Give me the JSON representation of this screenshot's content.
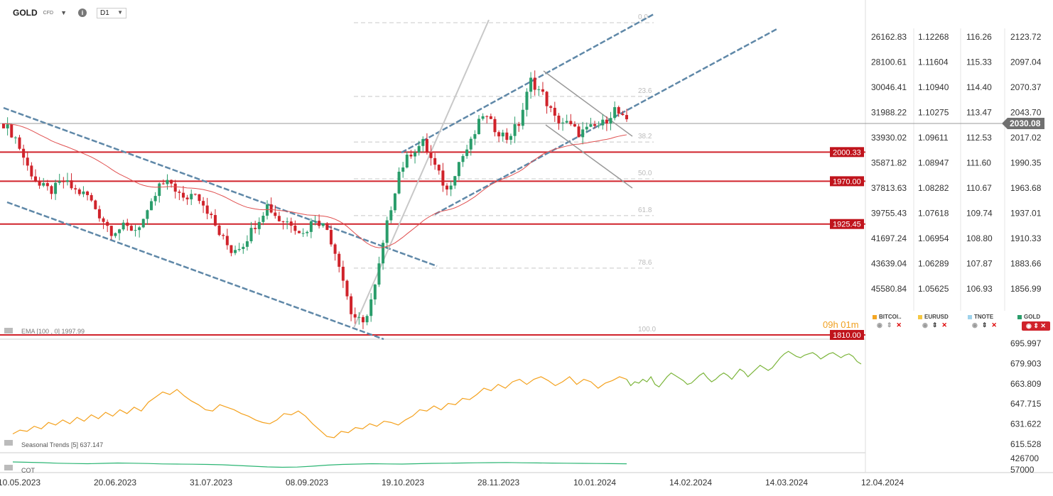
{
  "header": {
    "symbol": "GOLD",
    "instrument_type": "CFD",
    "timeframe": "D1",
    "info_icon": "info-icon"
  },
  "chart_data": [
    {
      "type": "candlestick",
      "title": "",
      "x_tick_labels": [
        "10.05.2023",
        "20.06.2023",
        "31.07.2023",
        "08.09.2023",
        "19.10.2023",
        "28.11.2023",
        "10.01.2024",
        "14.02.2024",
        "14.03.2024",
        "12.04.2024"
      ],
      "y_axis_gold": [
        "2123.72",
        "2097.04",
        "2070.37",
        "2043.70",
        "2017.02",
        "1990.35",
        "1963.68",
        "1937.01",
        "1910.33",
        "1883.66",
        "1856.99"
      ],
      "y_axis_bitcoin": [
        "26162.83",
        "28100.61",
        "30046.41",
        "31988.22",
        "33930.02",
        "35871.82",
        "37813.63",
        "39755.43",
        "41697.24",
        "43639.04",
        "45580.84"
      ],
      "y_axis_eurusd": [
        "1.12268",
        "1.11604",
        "1.10940",
        "1.10275",
        "1.09611",
        "1.08947",
        "1.08282",
        "1.07618",
        "1.06954",
        "1.06289",
        "1.05625"
      ],
      "y_axis_tnote": [
        "116.26",
        "115.33",
        "114.40",
        "113.47",
        "112.53",
        "111.60",
        "110.67",
        "109.74",
        "108.80",
        "107.87",
        "106.93"
      ],
      "last_price": "2030.08",
      "ylim": [
        1810,
        2135
      ],
      "horizontal_levels": [
        {
          "label": "2000.33",
          "value": 2000.33
        },
        {
          "label": "1970.00",
          "value": 1970.0
        },
        {
          "label": "1925.45",
          "value": 1925.45
        },
        {
          "label": "1810.00",
          "value": 1810.0
        }
      ],
      "fibonacci_levels": [
        "0.0",
        "23.6",
        "38.2",
        "50.0",
        "61.8",
        "78.6",
        "100.0"
      ],
      "ema_label": "EMA [100 , 0]  1997.99",
      "countdown": "09h 01m",
      "legend": [
        {
          "name": "BITCOI..",
          "color": "#f4a623"
        },
        {
          "name": "EURUSD",
          "color": "#f5c842"
        },
        {
          "name": "TNOTE",
          "color": "#9fd3ec"
        },
        {
          "name": "GOLD",
          "color": "#2a9d6b"
        }
      ],
      "gold_series": [
        {
          "d": "10.05.2023",
          "c": 2030
        },
        {
          "d": "15.05.2023",
          "c": 2015
        },
        {
          "d": "19.05.2023",
          "c": 1985
        },
        {
          "d": "24.05.2023",
          "c": 1965
        },
        {
          "d": "30.05.2023",
          "c": 1960
        },
        {
          "d": "05.06.2023",
          "c": 1970
        },
        {
          "d": "09.06.2023",
          "c": 1960
        },
        {
          "d": "15.06.2023",
          "c": 1955
        },
        {
          "d": "20.06.2023",
          "c": 1935
        },
        {
          "d": "26.06.2023",
          "c": 1918
        },
        {
          "d": "30.06.2023",
          "c": 1922
        },
        {
          "d": "06.07.2023",
          "c": 1920
        },
        {
          "d": "11.07.2023",
          "c": 1935
        },
        {
          "d": "17.07.2023",
          "c": 1965
        },
        {
          "d": "21.07.2023",
          "c": 1968
        },
        {
          "d": "27.07.2023",
          "c": 1950
        },
        {
          "d": "31.07.2023",
          "c": 1960
        },
        {
          "d": "04.08.2023",
          "c": 1940
        },
        {
          "d": "10.08.2023",
          "c": 1915
        },
        {
          "d": "16.08.2023",
          "c": 1898
        },
        {
          "d": "22.08.2023",
          "c": 1905
        },
        {
          "d": "28.08.2023",
          "c": 1925
        },
        {
          "d": "01.09.2023",
          "c": 1945
        },
        {
          "d": "07.09.2023",
          "c": 1930
        },
        {
          "d": "08.09.2023",
          "c": 1927
        },
        {
          "d": "14.09.2023",
          "c": 1915
        },
        {
          "d": "20.09.2023",
          "c": 1932
        },
        {
          "d": "26.09.2023",
          "c": 1920
        },
        {
          "d": "02.10.2023",
          "c": 1885
        },
        {
          "d": "06.10.2023",
          "c": 1833
        },
        {
          "d": "10.10.2023",
          "c": 1820
        },
        {
          "d": "13.10.2023",
          "c": 1860
        },
        {
          "d": "19.10.2023",
          "c": 1925
        },
        {
          "d": "25.10.2023",
          "c": 1980
        },
        {
          "d": "30.10.2023",
          "c": 2000
        },
        {
          "d": "03.11.2023",
          "c": 2010
        },
        {
          "d": "09.11.2023",
          "c": 1985
        },
        {
          "d": "15.11.2023",
          "c": 1960
        },
        {
          "d": "21.11.2023",
          "c": 1990
        },
        {
          "d": "28.11.2023",
          "c": 2010
        },
        {
          "d": "04.12.2023",
          "c": 2040
        },
        {
          "d": "08.12.2023",
          "c": 2025
        },
        {
          "d": "14.12.2023",
          "c": 2015
        },
        {
          "d": "20.12.2023",
          "c": 2030
        },
        {
          "d": "27.12.2023",
          "c": 2075
        },
        {
          "d": "02.01.2024",
          "c": 2060
        },
        {
          "d": "08.01.2024",
          "c": 2035
        },
        {
          "d": "10.01.2024",
          "c": 2030
        },
        {
          "d": "15.01.2024",
          "c": 2020
        },
        {
          "d": "19.01.2024",
          "c": 2025
        },
        {
          "d": "24.01.2024",
          "c": 2030
        },
        {
          "d": "30.01.2024",
          "c": 2045
        },
        {
          "d": "01.02.2024",
          "c": 2030
        }
      ]
    },
    {
      "type": "line",
      "title": "",
      "indicator_label": "Seasonal  Trends  [5]  637.147",
      "y_tick_labels": [
        "695.997",
        "679.903",
        "663.809",
        "647.715",
        "631.622",
        "615.528"
      ],
      "ylim": [
        615.528,
        695.997
      ],
      "series": [
        {
          "color": "#f4a11d",
          "values": [
            627,
            630,
            629,
            633,
            631,
            636,
            634,
            638,
            635,
            640,
            637,
            642,
            639,
            644,
            641,
            646,
            643,
            648,
            645,
            652,
            656,
            660,
            658,
            662,
            657,
            653,
            650,
            646,
            645,
            650,
            648,
            646,
            643,
            641,
            638,
            636,
            635,
            638,
            643,
            642,
            645,
            641,
            635,
            630,
            625,
            624,
            629,
            628,
            632,
            631,
            635,
            633,
            637,
            636,
            634,
            638,
            641,
            646,
            645,
            649,
            646,
            651,
            650,
            655,
            654,
            658,
            663,
            661,
            666,
            663,
            668,
            670,
            666,
            670,
            672,
            669,
            665,
            668,
            672,
            666,
            670,
            668,
            663,
            667,
            669,
            672,
            670
          ]
        },
        {
          "color": "#7cb53b",
          "values": [
            670,
            665,
            668,
            667,
            670,
            668,
            672,
            666,
            664,
            668,
            672,
            675,
            673,
            671,
            669,
            666,
            667,
            670,
            673,
            675,
            671,
            668,
            670,
            673,
            675,
            673,
            670,
            674,
            678,
            676,
            672,
            675,
            678,
            681,
            679,
            677,
            679,
            683,
            687,
            690,
            692,
            690,
            688,
            687,
            689,
            690,
            691,
            689,
            686,
            688,
            690,
            691,
            689,
            687,
            689,
            690,
            688,
            684,
            682
          ]
        }
      ]
    },
    {
      "type": "line",
      "title": "",
      "indicator_label": "COT",
      "y_tick_labels": [
        "426700",
        "57000"
      ],
      "series": [
        {
          "color": "#2bb573",
          "values": [
            390000,
            385000,
            380000,
            372000,
            368000,
            365000,
            370000,
            375000,
            372000,
            368000,
            362000,
            360000,
            358000,
            355000,
            350000,
            340000,
            330000,
            320000,
            315000,
            318000,
            330000,
            345000,
            355000,
            360000,
            365000,
            362000,
            360000,
            365000,
            370000,
            372000,
            375000,
            378000,
            380000,
            382000,
            378000,
            376000,
            374000,
            372000,
            370000,
            368000,
            366000,
            364000
          ]
        }
      ]
    }
  ]
}
